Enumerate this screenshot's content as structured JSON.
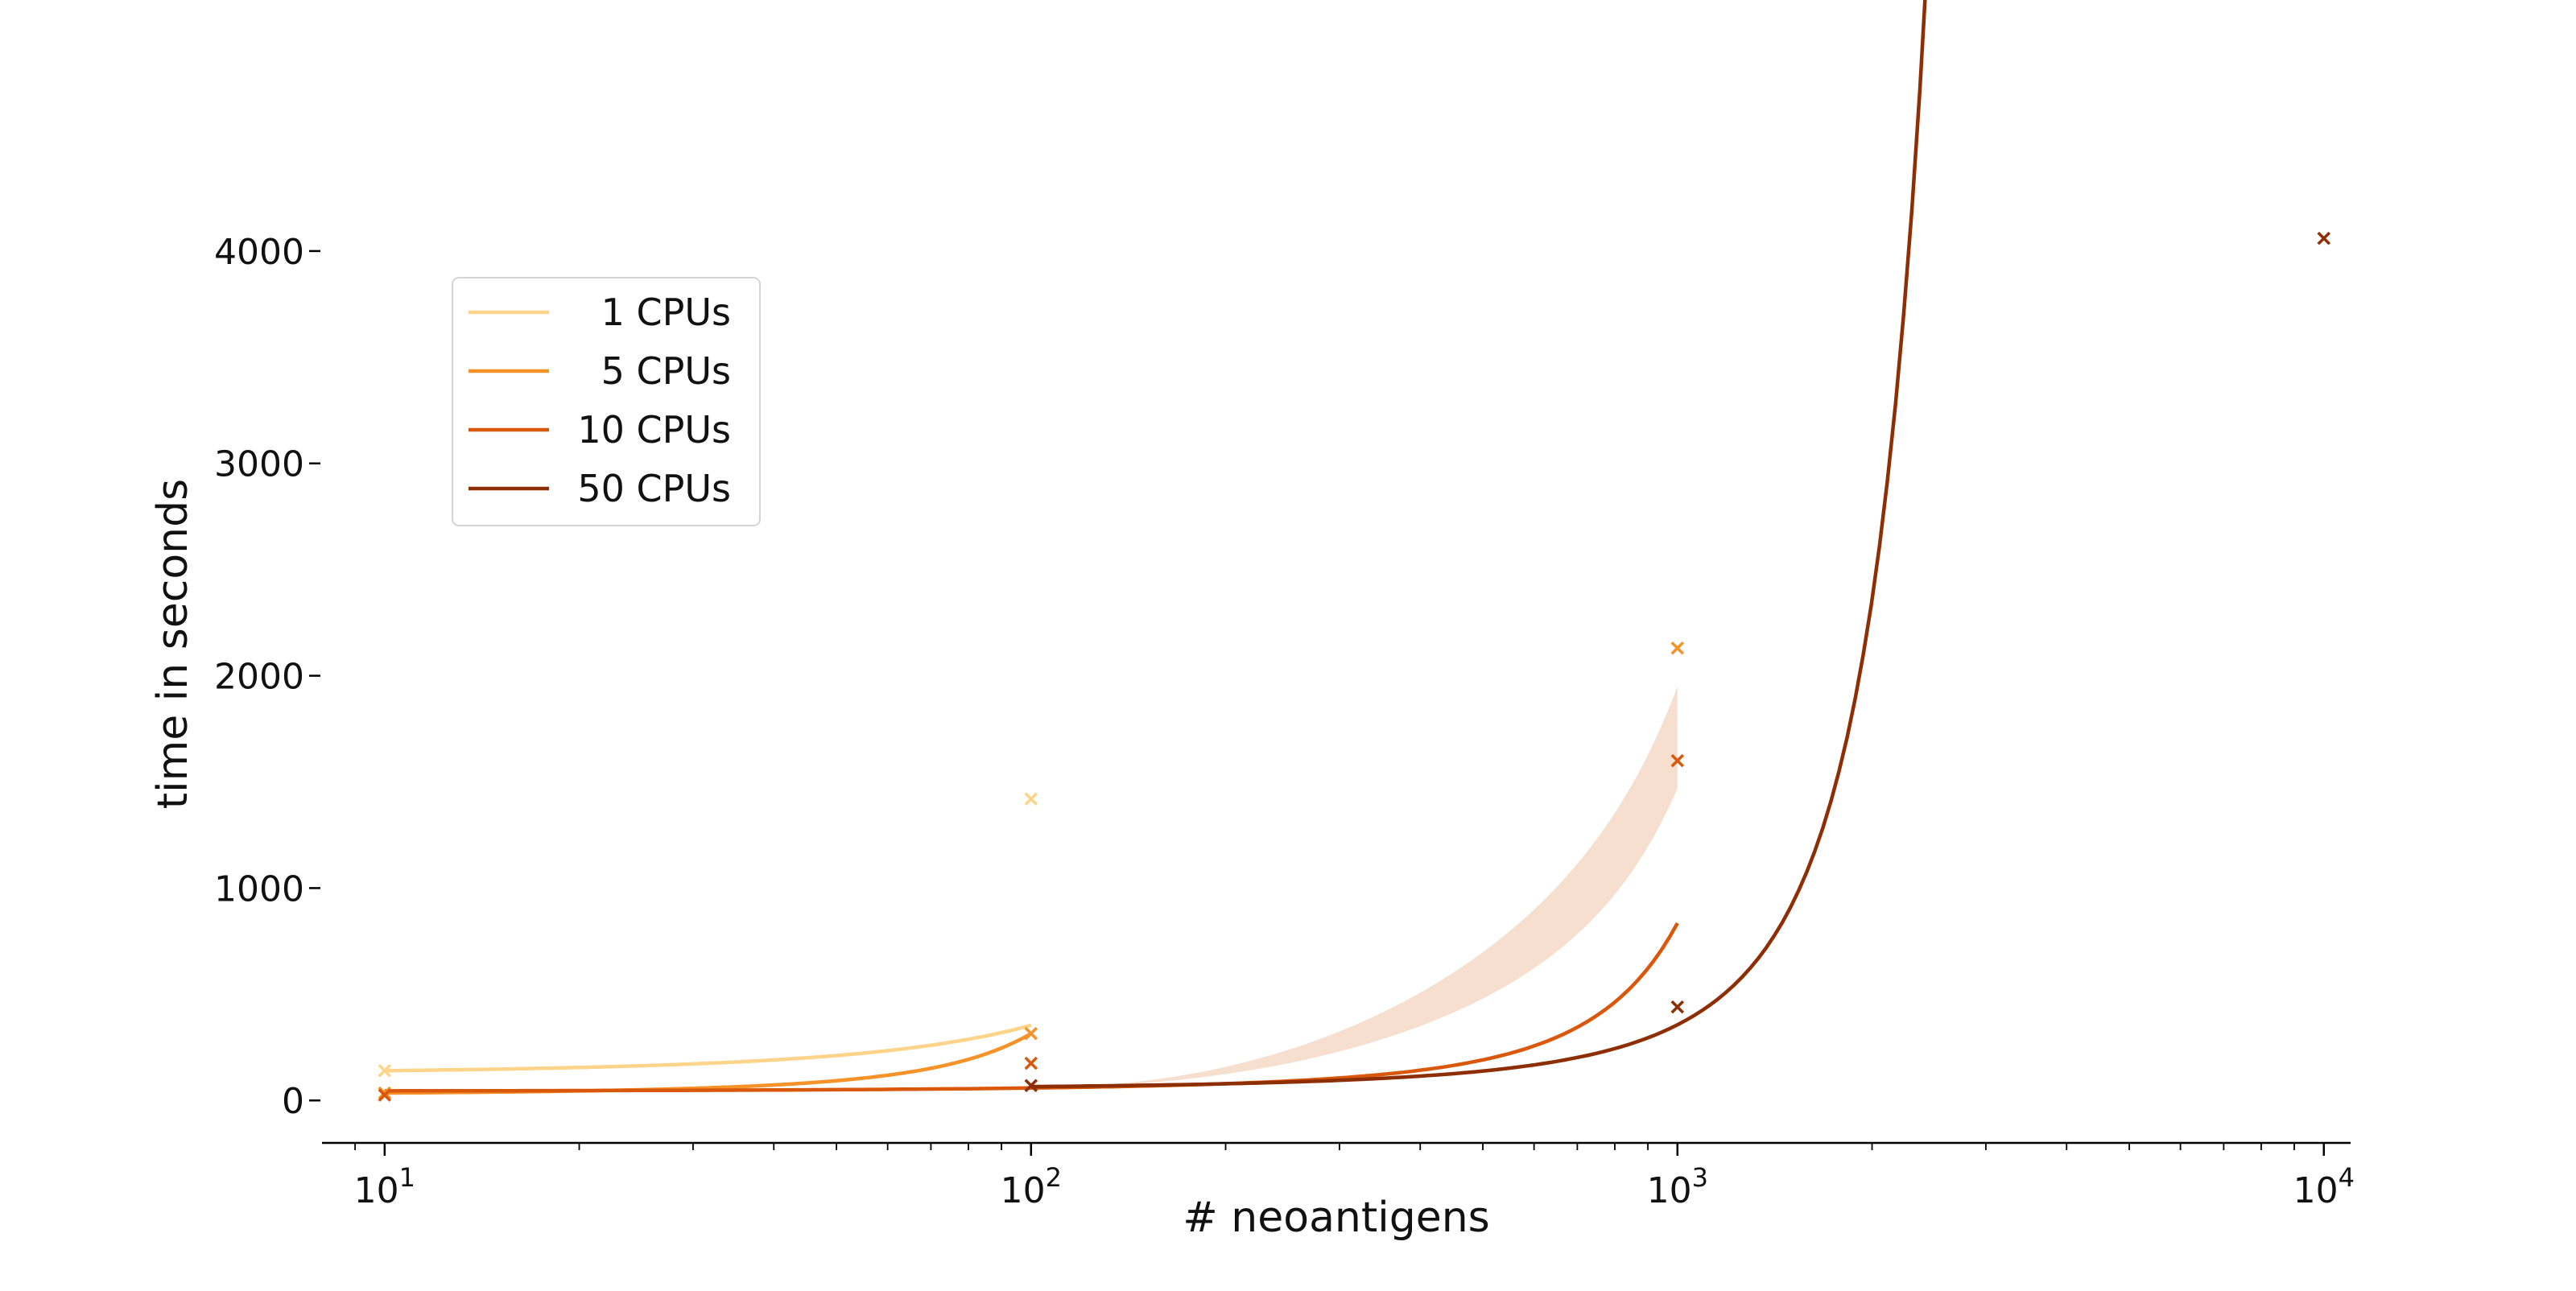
{
  "chart_data": {
    "type": "line",
    "title": "",
    "xlabel": "# neoantigens",
    "ylabel": "time in seconds",
    "x_scale": "log",
    "xlim": [
      8,
      11000
    ],
    "ylim": [
      -200,
      4500
    ],
    "x_ticks": [
      {
        "value": 10,
        "base": "10",
        "exp": "1"
      },
      {
        "value": 100,
        "base": "10",
        "exp": "2"
      },
      {
        "value": 1000,
        "base": "10",
        "exp": "3"
      },
      {
        "value": 10000,
        "base": "10",
        "exp": "4"
      }
    ],
    "y_ticks": [
      {
        "value": 0,
        "label": "0"
      },
      {
        "value": 1000,
        "label": "1000"
      },
      {
        "value": 2000,
        "label": "2000"
      },
      {
        "value": 3000,
        "label": "3000"
      },
      {
        "value": 4000,
        "label": "4000"
      }
    ],
    "grid": false,
    "legend_position": "upper-left",
    "marker": "x",
    "band_color": "#f5d9c6",
    "series": [
      {
        "name": "1 CPUs",
        "color": "#fdd48a",
        "points": [
          [
            10,
            140
          ],
          [
            100,
            1420
          ]
        ],
        "fit": {
          "x_start": 10,
          "x_end": 100,
          "a": 140,
          "b": 0.01031
        }
      },
      {
        "name": "5 CPUs",
        "color": "#f59329",
        "points": [
          [
            10,
            35
          ],
          [
            100,
            315
          ],
          [
            1000,
            2130
          ]
        ],
        "fit": {
          "x_start": 10,
          "x_end": 100,
          "a": 35,
          "b": 0.02441
        }
      },
      {
        "name": "10 CPUs",
        "color": "#d9580b",
        "points": [
          [
            10,
            25
          ],
          [
            100,
            175
          ],
          [
            1000,
            1600
          ]
        ],
        "fit": {
          "x_start": 10,
          "x_end": 1000,
          "a": 45,
          "b": 0.00295
        },
        "band": {
          "x_start": 100,
          "x_end": 1000,
          "upper_end": 1950,
          "lower_end": 1470
        }
      },
      {
        "name": "50 CPUs",
        "color": "#8e2e05",
        "points": [
          [
            100,
            70
          ],
          [
            1000,
            440
          ],
          [
            10000,
            4060
          ]
        ],
        "fit": {
          "x_start": 100,
          "x_end": 10000,
          "a": 65,
          "b": 0.00189
        }
      }
    ]
  }
}
